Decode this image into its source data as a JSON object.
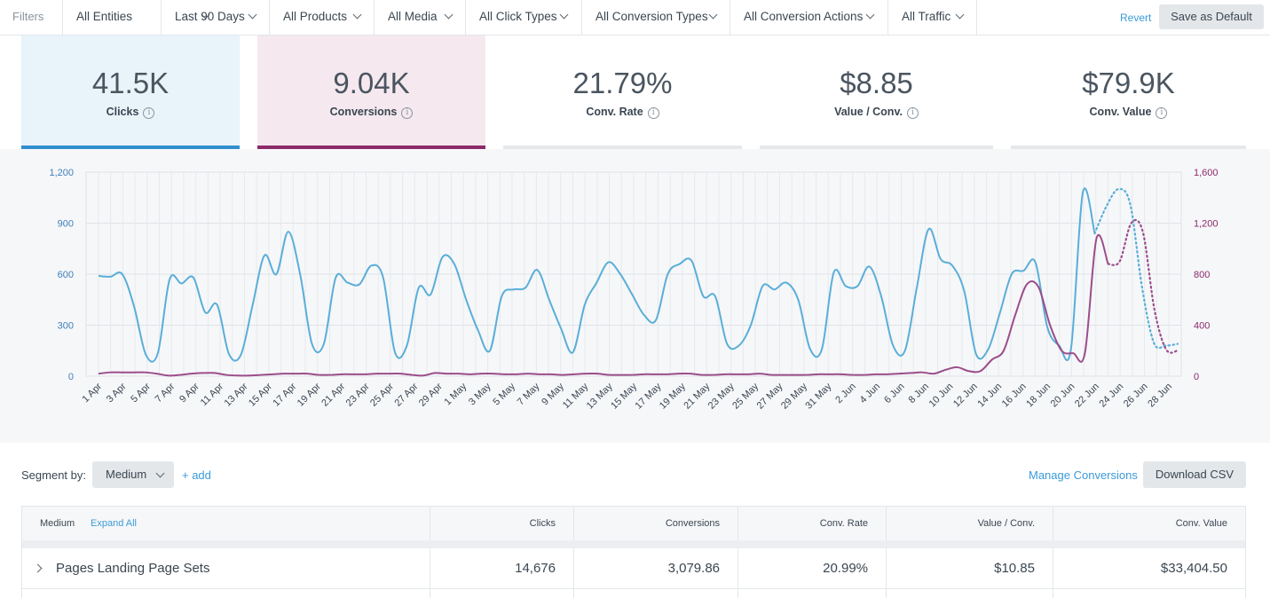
{
  "filters": {
    "label": "Filters",
    "items": [
      {
        "label": "All Entities"
      },
      {
        "label": "Last 90 Days"
      },
      {
        "label": "All Products"
      },
      {
        "label": "All Media"
      },
      {
        "label": "All Click Types"
      },
      {
        "label": "All Conversion Types"
      },
      {
        "label": "All Conversion Actions"
      },
      {
        "label": "All Traffic"
      }
    ],
    "revert": "Revert",
    "save_default": "Save as Default"
  },
  "metrics": {
    "clicks": {
      "value": "41.5K",
      "label": "Clicks"
    },
    "conversions": {
      "value": "9.04K",
      "label": "Conversions"
    },
    "conv_rate": {
      "value": "21.79%",
      "label": "Conv. Rate"
    },
    "value_per_conv": {
      "value": "$8.85",
      "label": "Value / Conv."
    },
    "conv_value": {
      "value": "$79.9K",
      "label": "Conv. Value"
    },
    "info_glyph": "i"
  },
  "colors": {
    "clicks": "#5aaed8",
    "conversions": "#9b4d8a",
    "accent_link": "#3b9bd8",
    "left_axis": "#3f7fb8",
    "right_axis": "#8c2a6a"
  },
  "chart_data": {
    "type": "line",
    "x_tick_labels": [
      "1 Apr",
      "3 Apr",
      "5 Apr",
      "7 Apr",
      "9 Apr",
      "11 Apr",
      "13 Apr",
      "15 Apr",
      "17 Apr",
      "19 Apr",
      "21 Apr",
      "23 Apr",
      "25 Apr",
      "27 Apr",
      "29 Apr",
      "1 May",
      "3 May",
      "5 May",
      "7 May",
      "9 May",
      "11 May",
      "13 May",
      "15 May",
      "17 May",
      "19 May",
      "21 May",
      "23 May",
      "25 May",
      "27 May",
      "29 May",
      "31 May",
      "2 Jun",
      "4 Jun",
      "6 Jun",
      "8 Jun",
      "10 Jun",
      "12 Jun",
      "14 Jun",
      "16 Jun",
      "18 Jun",
      "20 Jun",
      "22 Jun",
      "24 Jun",
      "26 Jun",
      "28 Jun"
    ],
    "y_left": {
      "ticks": [
        "0",
        "300",
        "600",
        "900",
        "1,200"
      ],
      "range": [
        0,
        1200
      ]
    },
    "y_right": {
      "ticks": [
        "0",
        "400",
        "800",
        "1,200",
        "1,600"
      ],
      "range": [
        0,
        1600
      ]
    },
    "grid": true,
    "series": [
      {
        "key": "clicks",
        "axis": "left",
        "values": [
          590,
          585,
          600,
          410,
          125,
          135,
          570,
          545,
          580,
          375,
          420,
          130,
          125,
          420,
          710,
          600,
          850,
          600,
          190,
          190,
          580,
          550,
          540,
          650,
          580,
          140,
          180,
          520,
          480,
          700,
          660,
          450,
          270,
          150,
          470,
          510,
          520,
          625,
          450,
          280,
          140,
          420,
          550,
          670,
          600,
          480,
          360,
          330,
          600,
          660,
          680,
          470,
          470,
          190,
          180,
          300,
          530,
          510,
          550,
          450,
          160,
          160,
          610,
          530,
          530,
          645,
          470,
          180,
          150,
          520,
          865,
          690,
          650,
          500,
          130,
          155,
          370,
          600,
          620,
          670,
          290,
          180,
          160,
          1080,
          840
        ],
        "projected": [
          840,
          1000,
          1100,
          1010,
          520,
          195,
          180,
          190
        ]
      },
      {
        "key": "conversions",
        "axis": "right",
        "values": [
          20,
          30,
          30,
          30,
          30,
          20,
          5,
          10,
          20,
          25,
          25,
          10,
          5,
          5,
          10,
          15,
          20,
          20,
          20,
          10,
          10,
          15,
          15,
          15,
          20,
          20,
          20,
          10,
          5,
          25,
          20,
          20,
          15,
          20,
          20,
          15,
          15,
          20,
          15,
          15,
          10,
          15,
          20,
          20,
          10,
          10,
          10,
          15,
          15,
          15,
          20,
          20,
          10,
          10,
          15,
          15,
          15,
          20,
          10,
          10,
          10,
          10,
          15,
          15,
          15,
          10,
          10,
          15,
          15,
          20,
          25,
          30,
          20,
          50,
          70,
          40,
          40,
          130,
          200,
          480,
          720,
          700,
          400,
          200,
          180,
          180,
          1080,
          880
        ],
        "projected": [
          880,
          900,
          1200,
          1130,
          520,
          210,
          200
        ]
      }
    ]
  },
  "segment": {
    "label": "Segment by:",
    "selected": "Medium",
    "add": "+ add",
    "manage_conversions": "Manage Conversions",
    "download_csv": "Download CSV"
  },
  "table": {
    "headers": {
      "medium": "Medium",
      "expand_all": "Expand All",
      "clicks": "Clicks",
      "conversions": "Conversions",
      "conv_rate": "Conv. Rate",
      "value_per_conv": "Value / Conv.",
      "conv_value": "Conv. Value"
    },
    "rows": [
      {
        "name": "Pages Landing Page Sets",
        "clicks": "14,676",
        "conversions": "3,079.86",
        "conv_rate": "20.99%",
        "value_per_conv": "$10.85",
        "conv_value": "$33,404.50"
      }
    ]
  }
}
